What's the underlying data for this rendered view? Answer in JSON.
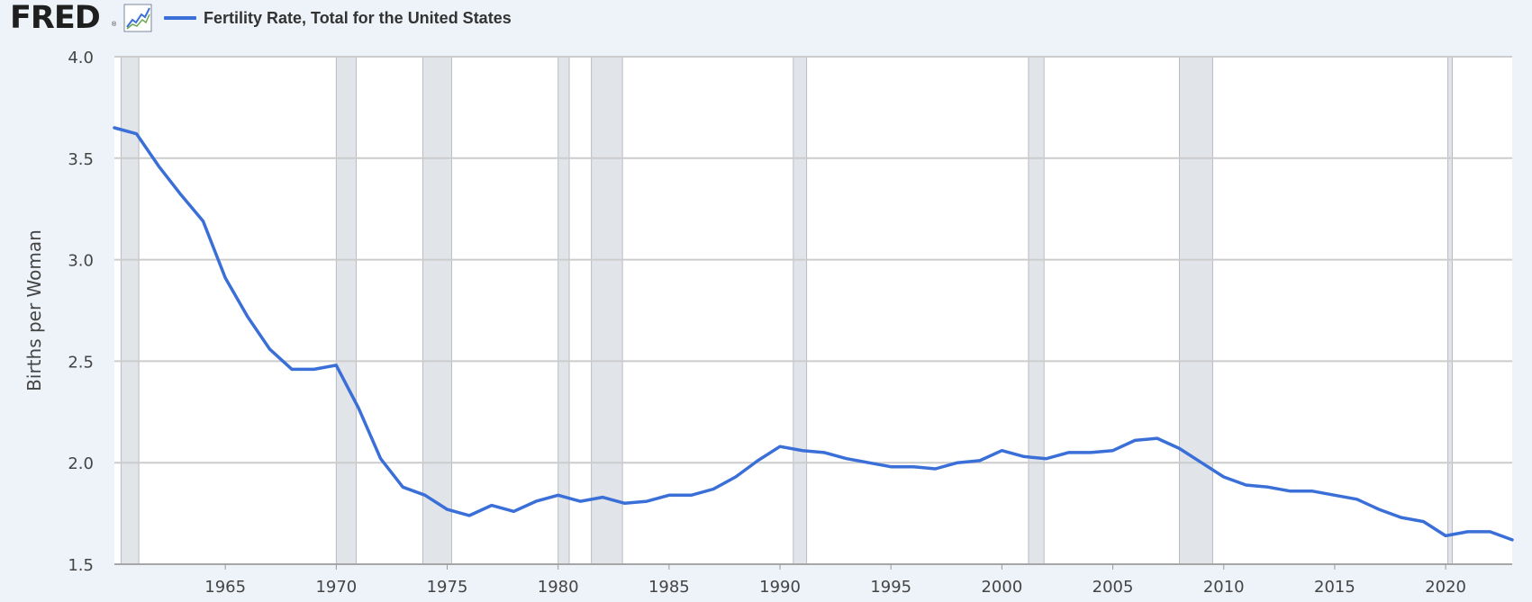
{
  "header": {
    "logo_text": "FRED",
    "logo_mark": "®",
    "logo_icon": "line-chart-icon",
    "legend_label": "Fertility Rate, Total for the United States"
  },
  "colors": {
    "background": "#eef3fa",
    "plot_background": "#ffffff",
    "series": "#3a6fd8",
    "recession": "#e1e5ea",
    "grid": "#cccccc"
  },
  "chart_data": {
    "type": "line",
    "title": "",
    "xlabel": "",
    "ylabel": "Births per Woman",
    "xlim": [
      1960,
      2023
    ],
    "ylim": [
      1.5,
      4.0
    ],
    "grid": true,
    "x_ticks": [
      1965,
      1970,
      1975,
      1980,
      1985,
      1990,
      1995,
      2000,
      2005,
      2010,
      2015,
      2020
    ],
    "y_ticks": [
      "1.5",
      "2.0",
      "2.5",
      "3.0",
      "3.5",
      "4.0"
    ],
    "recessions": [
      [
        1960.3,
        1961.1
      ],
      [
        1970.0,
        1970.9
      ],
      [
        1973.9,
        1975.2
      ],
      [
        1980.0,
        1980.5
      ],
      [
        1981.5,
        1982.9
      ],
      [
        1990.6,
        1991.2
      ],
      [
        2001.2,
        2001.9
      ],
      [
        2008.0,
        2009.5
      ],
      [
        2020.1,
        2020.3
      ]
    ],
    "series": [
      {
        "name": "Fertility Rate, Total for the United States",
        "x": [
          1960,
          1961,
          1962,
          1963,
          1964,
          1965,
          1966,
          1967,
          1968,
          1969,
          1970,
          1971,
          1972,
          1973,
          1974,
          1975,
          1976,
          1977,
          1978,
          1979,
          1980,
          1981,
          1982,
          1983,
          1984,
          1985,
          1986,
          1987,
          1988,
          1989,
          1990,
          1991,
          1992,
          1993,
          1994,
          1995,
          1996,
          1997,
          1998,
          1999,
          2000,
          2001,
          2002,
          2003,
          2004,
          2005,
          2006,
          2007,
          2008,
          2009,
          2010,
          2011,
          2012,
          2013,
          2014,
          2015,
          2016,
          2017,
          2018,
          2019,
          2020,
          2021,
          2022,
          2023
        ],
        "values": [
          3.65,
          3.62,
          3.46,
          3.32,
          3.19,
          2.91,
          2.72,
          2.56,
          2.46,
          2.46,
          2.48,
          2.27,
          2.02,
          1.88,
          1.84,
          1.77,
          1.74,
          1.79,
          1.76,
          1.81,
          1.84,
          1.81,
          1.83,
          1.8,
          1.81,
          1.84,
          1.84,
          1.87,
          1.93,
          2.01,
          2.08,
          2.06,
          2.05,
          2.02,
          2.0,
          1.98,
          1.98,
          1.97,
          2.0,
          2.01,
          2.06,
          2.03,
          2.02,
          2.05,
          2.05,
          2.06,
          2.11,
          2.12,
          2.07,
          2.0,
          1.93,
          1.89,
          1.88,
          1.86,
          1.86,
          1.84,
          1.82,
          1.77,
          1.73,
          1.71,
          1.64,
          1.66,
          1.66,
          1.62
        ]
      }
    ]
  }
}
